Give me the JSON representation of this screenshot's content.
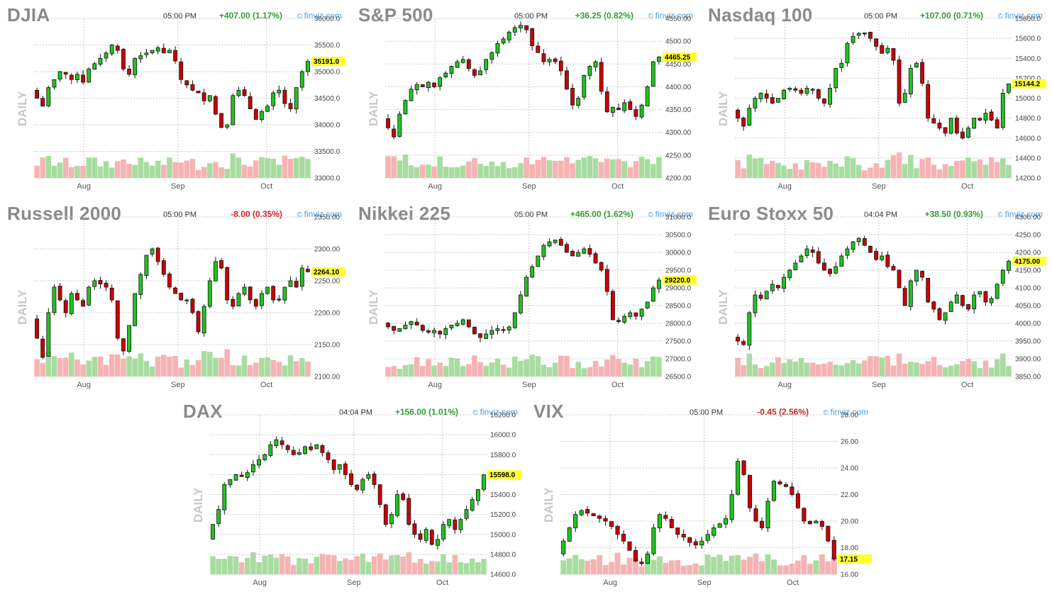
{
  "panels": [
    {
      "title": "DJIA",
      "time": "05:00 PM",
      "change": "+407.00 (1.17%)",
      "dir": "up",
      "brand": "finviz.com",
      "daily": "DAILY",
      "y_ticks": [
        "36000.0",
        "35500.0",
        "35000.0",
        "34500.0",
        "34000.0",
        "33500.0",
        "33000.0"
      ],
      "x_ticks": [
        "Aug",
        "Sep",
        "Oct"
      ],
      "last": "35191.0"
    },
    {
      "title": "S&P 500",
      "time": "05:00 PM",
      "change": "+36.25 (0.82%)",
      "dir": "up",
      "brand": "finviz.com",
      "daily": "DAILY",
      "y_ticks": [
        "4550.00",
        "4500.00",
        "4450.00",
        "4400.00",
        "4350.00",
        "4300.00",
        "4250.00",
        "4200.00"
      ],
      "x_ticks": [
        "Aug",
        "Sep",
        "Oct"
      ],
      "last": "4465.25"
    },
    {
      "title": "Nasdaq 100",
      "time": "05:00 PM",
      "change": "+107.00 (0.71%)",
      "dir": "up",
      "brand": "finviz.com",
      "daily": "DAILY",
      "y_ticks": [
        "15800.0",
        "15600.0",
        "15400.0",
        "15200.0",
        "15000.0",
        "14800.0",
        "14600.0",
        "14400.0",
        "14200.0"
      ],
      "x_ticks": [
        "Aug",
        "Sep",
        "Oct"
      ],
      "last": "15144.2"
    },
    {
      "title": "Russell 2000",
      "time": "05:00 PM",
      "change": "-8.00 (0.35%)",
      "dir": "down",
      "brand": "finviz.com",
      "daily": "DAILY",
      "y_ticks": [
        "2350.00",
        "2300.00",
        "2250.00",
        "2200.00",
        "2150.00",
        "2100.00"
      ],
      "x_ticks": [
        "Aug",
        "Sep",
        "Oct"
      ],
      "last": "2264.10"
    },
    {
      "title": "Nikkei 225",
      "time": "05:00 PM",
      "change": "+465.00 (1.62%)",
      "dir": "up",
      "brand": "finviz.com",
      "daily": "DAILY",
      "y_ticks": [
        "31000.0",
        "30500.0",
        "30000.0",
        "29500.0",
        "29000.0",
        "28500.0",
        "28000.0",
        "27500.0",
        "27000.0",
        "26500.0"
      ],
      "x_ticks": [
        "Aug",
        "Sep",
        "Oct"
      ],
      "last": "29220.0"
    },
    {
      "title": "Euro Stoxx 50",
      "time": "04:04 PM",
      "change": "+38.50 (0.93%)",
      "dir": "up",
      "brand": "finviz.com",
      "daily": "DAILY",
      "y_ticks": [
        "4300.00",
        "4250.00",
        "4200.00",
        "4150.00",
        "4100.00",
        "4050.00",
        "4000.00",
        "3950.00",
        "3900.00",
        "3850.00"
      ],
      "x_ticks": [
        "Aug",
        "Sep",
        "Oct"
      ],
      "last": "4175.00"
    },
    {
      "title": "DAX",
      "time": "04:04 PM",
      "change": "+156.00 (1.01%)",
      "dir": "up",
      "brand": "finviz.com",
      "daily": "DAILY",
      "y_ticks": [
        "16200.0",
        "16000.0",
        "15800.0",
        "15600.0",
        "15400.0",
        "15200.0",
        "15000.0",
        "14800.0",
        "14600.0"
      ],
      "x_ticks": [
        "Aug",
        "Sep",
        "Oct"
      ],
      "last": "15598.0"
    },
    {
      "title": "VIX",
      "time": "05:00 PM",
      "change": "-0.45 (2.56%)",
      "dir": "down",
      "brand": "finviz.com",
      "daily": "DAILY",
      "y_ticks": [
        "28.00",
        "26.00",
        "24.00",
        "22.00",
        "20.00",
        "18.00",
        "16.00"
      ],
      "x_ticks": [
        "Aug",
        "Sep",
        "Oct"
      ],
      "last": "17.15"
    }
  ],
  "chart_data": [
    {
      "type": "candlestick",
      "title": "DJIA",
      "ylim": [
        33000,
        36000
      ],
      "last": 35191,
      "path": [
        34500,
        34350,
        34700,
        34850,
        35000,
        34950,
        34850,
        34950,
        34800,
        35050,
        35150,
        35250,
        35350,
        35500,
        35400,
        35050,
        34950,
        35250,
        35300,
        35350,
        35400,
        35450,
        35350,
        35400,
        35200,
        34850,
        34750,
        34650,
        34600,
        34450,
        34550,
        34200,
        33950,
        34000,
        34550,
        34650,
        34550,
        34300,
        34100,
        34250,
        34350,
        34600,
        34650,
        34400,
        34300,
        34700,
        35000,
        35191
      ]
    },
    {
      "type": "candlestick",
      "title": "S&P 500",
      "ylim": [
        4200,
        4550
      ],
      "last": 4465.25,
      "path": [
        4310,
        4290,
        4340,
        4370,
        4395,
        4405,
        4400,
        4410,
        4400,
        4420,
        4430,
        4445,
        4455,
        4460,
        4440,
        4425,
        4435,
        4460,
        4475,
        4495,
        4505,
        4520,
        4530,
        4535,
        4525,
        4490,
        4475,
        4455,
        4460,
        4455,
        4435,
        4395,
        4360,
        4375,
        4425,
        4445,
        4455,
        4390,
        4345,
        4355,
        4350,
        4365,
        4350,
        4335,
        4360,
        4400,
        4455,
        4465.25
      ]
    },
    {
      "type": "candlestick",
      "title": "Nasdaq 100",
      "ylim": [
        14200,
        15800
      ],
      "last": 15144.2,
      "path": [
        14800,
        14720,
        14900,
        15000,
        15050,
        15000,
        14950,
        15000,
        15080,
        15100,
        15080,
        15050,
        15100,
        15080,
        15000,
        14950,
        15100,
        15300,
        15350,
        15550,
        15620,
        15650,
        15650,
        15600,
        15520,
        15450,
        15500,
        15380,
        14950,
        15050,
        15300,
        15350,
        15150,
        14800,
        14750,
        14700,
        14650,
        14800,
        14650,
        14600,
        14700,
        14800,
        14780,
        14850,
        14780,
        14700,
        15050,
        15144.2
      ]
    },
    {
      "type": "candlestick",
      "title": "Russell 2000",
      "ylim": [
        2100,
        2350
      ],
      "last": 2264.1,
      "path": [
        2160,
        2130,
        2200,
        2240,
        2220,
        2200,
        2230,
        2220,
        2210,
        2240,
        2250,
        2245,
        2240,
        2220,
        2160,
        2140,
        2180,
        2230,
        2260,
        2290,
        2300,
        2280,
        2260,
        2240,
        2230,
        2220,
        2220,
        2200,
        2170,
        2210,
        2250,
        2280,
        2270,
        2220,
        2210,
        2230,
        2240,
        2220,
        2210,
        2230,
        2240,
        2220,
        2220,
        2240,
        2250,
        2240,
        2270,
        2264.1
      ]
    },
    {
      "type": "candlestick",
      "title": "Nikkei 225",
      "ylim": [
        26500,
        31000
      ],
      "last": 29220,
      "path": [
        27900,
        27800,
        27850,
        27950,
        28050,
        27950,
        27800,
        27750,
        27800,
        27700,
        27850,
        27950,
        28000,
        28100,
        27900,
        27700,
        27600,
        27700,
        27800,
        27850,
        27800,
        27900,
        28300,
        28800,
        29300,
        29600,
        29900,
        30200,
        30300,
        30350,
        30200,
        30000,
        29900,
        30000,
        30100,
        29950,
        29700,
        29500,
        28900,
        28100,
        28050,
        28200,
        28300,
        28200,
        28400,
        28600,
        29000,
        29220
      ]
    },
    {
      "type": "candlestick",
      "title": "Euro Stoxx 50",
      "ylim": [
        3850,
        4300
      ],
      "last": 4175,
      "path": [
        3950,
        3940,
        4030,
        4080,
        4070,
        4090,
        4110,
        4100,
        4130,
        4150,
        4170,
        4190,
        4210,
        4200,
        4170,
        4150,
        4140,
        4160,
        4190,
        4210,
        4230,
        4240,
        4220,
        4200,
        4180,
        4190,
        4160,
        4150,
        4100,
        4050,
        4120,
        4150,
        4130,
        4060,
        4040,
        4010,
        4030,
        4060,
        4080,
        4050,
        4040,
        4080,
        4090,
        4060,
        4070,
        4110,
        4150,
        4175
      ]
    },
    {
      "type": "candlestick",
      "title": "DAX",
      "ylim": [
        14600,
        16200
      ],
      "last": 15598,
      "path": [
        15100,
        15250,
        15500,
        15550,
        15600,
        15580,
        15620,
        15700,
        15750,
        15800,
        15900,
        15950,
        15900,
        15850,
        15800,
        15820,
        15880,
        15850,
        15900,
        15820,
        15750,
        15650,
        15700,
        15600,
        15500,
        15450,
        15550,
        15600,
        15500,
        15300,
        15100,
        15200,
        15400,
        15350,
        15100,
        15000,
        14950,
        15050,
        14900,
        14950,
        15100,
        15150,
        15050,
        15150,
        15250,
        15350,
        15450,
        15598
      ]
    },
    {
      "type": "candlestick",
      "title": "VIX",
      "ylim": [
        16,
        28
      ],
      "last": 17.15,
      "path": [
        18.5,
        19.5,
        20.5,
        20.8,
        20.6,
        20.4,
        20.2,
        20.0,
        19.6,
        19.0,
        18.5,
        17.8,
        17.0,
        16.8,
        17.5,
        19.5,
        20.5,
        20.2,
        19.5,
        19.0,
        18.8,
        18.4,
        18.2,
        18.5,
        19.0,
        19.5,
        19.8,
        20.2,
        22.0,
        24.5,
        23.5,
        21.0,
        20.0,
        19.5,
        21.5,
        23.0,
        22.8,
        22.6,
        22.0,
        21.0,
        20.0,
        19.8,
        20.0,
        19.6,
        18.5,
        17.15
      ]
    }
  ]
}
